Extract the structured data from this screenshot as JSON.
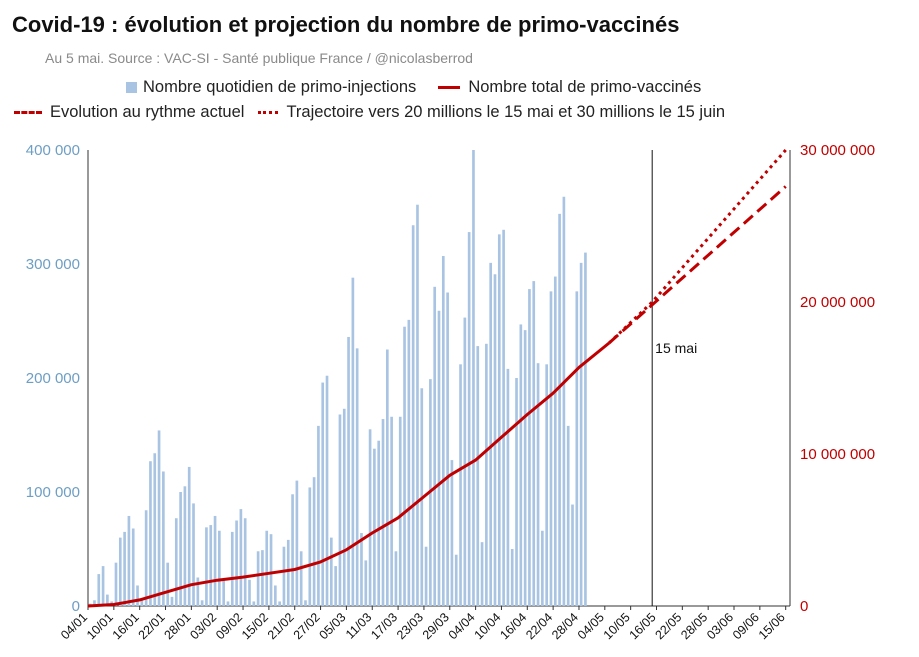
{
  "header": {
    "title": "Covid-19 : évolution et projection du nombre de primo-vaccinés",
    "subtitle": "Au 5 mai. Source : VAC-SI - Santé publique France / @nicolasberrod"
  },
  "legend": {
    "daily": "Nombre quotidien de primo-injections",
    "total": "Nombre total de primo-vaccinés",
    "current_pace": "Evolution au rythme actuel",
    "trajectory": "Trajectoire vers 20 millions le 15 mai et 30 millions le 15 juin"
  },
  "colors": {
    "bars": "#a9c4e2",
    "line": "#c00000",
    "left_axis": "#6d9ec4",
    "right_axis": "#c00000"
  },
  "chart_data": {
    "type": "bar+line",
    "title": "Covid-19 : évolution et projection du nombre de primo-vaccinés",
    "subtitle": "Au 5 mai. Source : VAC-SI - Santé publique France / @nicolasberrod",
    "x_start": "04/01",
    "total_days": 163,
    "x_tick_labels": [
      "04/01",
      "10/01",
      "16/01",
      "22/01",
      "28/01",
      "03/02",
      "09/02",
      "15/02",
      "21/02",
      "27/02",
      "05/03",
      "11/03",
      "17/03",
      "23/03",
      "29/03",
      "04/04",
      "10/04",
      "16/04",
      "22/04",
      "28/04",
      "04/05",
      "10/05",
      "16/05",
      "22/05",
      "28/05",
      "03/06",
      "09/06",
      "15/06"
    ],
    "left_axis": {
      "min": 0,
      "max": 400000,
      "ticks": [
        0,
        100000,
        200000,
        300000,
        400000
      ],
      "tick_labels": [
        "0",
        "100 000",
        "200 000",
        "300 000",
        "400 000"
      ]
    },
    "right_axis": {
      "min": 0,
      "max": 30000000,
      "ticks": [
        0,
        10000000,
        20000000,
        30000000
      ],
      "tick_labels": [
        "0",
        "10 000 000",
        "20 000 000",
        "30 000 000"
      ]
    },
    "series": [
      {
        "name": "Nombre quotidien de primo-injections",
        "kind": "bar",
        "axis": "left",
        "values": [
          2000,
          5000,
          28000,
          35000,
          10000,
          4000,
          38000,
          60000,
          65000,
          79000,
          68000,
          18000,
          5000,
          84000,
          127000,
          134000,
          154000,
          118000,
          38000,
          8000,
          77000,
          100000,
          105000,
          122000,
          90000,
          25000,
          5000,
          69000,
          71000,
          79000,
          66000,
          23000,
          4000,
          65000,
          75000,
          85000,
          77000,
          23000,
          4000,
          48000,
          49000,
          66000,
          63000,
          18000,
          4000,
          52000,
          58000,
          98000,
          110000,
          48000,
          5000,
          104000,
          113000,
          158000,
          196000,
          202000,
          60000,
          35000,
          168000,
          173000,
          236000,
          288000,
          226000,
          64000,
          40000,
          155000,
          138000,
          145000,
          164000,
          225000,
          166000,
          48000,
          166000,
          245000,
          251000,
          334000,
          352000,
          191000,
          52000,
          199000,
          280000,
          259000,
          307000,
          275000,
          128000,
          45000,
          212000,
          253000,
          328000,
          400000,
          228000,
          56000,
          230000,
          301000,
          291000,
          326000,
          330000,
          208000,
          50000,
          200000,
          247000,
          242000,
          278000,
          285000,
          213000,
          66000,
          212000,
          276000,
          289000,
          344000,
          359000,
          158000,
          89000,
          276000,
          301000,
          310000
        ]
      },
      {
        "name": "Nombre total de primo-vaccinés",
        "kind": "line",
        "axis": "right",
        "points": [
          [
            0,
            0
          ],
          [
            6,
            100000
          ],
          [
            12,
            400000
          ],
          [
            18,
            900000
          ],
          [
            24,
            1400000
          ],
          [
            30,
            1700000
          ],
          [
            36,
            1900000
          ],
          [
            42,
            2150000
          ],
          [
            48,
            2400000
          ],
          [
            54,
            2900000
          ],
          [
            60,
            3700000
          ],
          [
            66,
            4800000
          ],
          [
            72,
            5800000
          ],
          [
            78,
            7200000
          ],
          [
            84,
            8600000
          ],
          [
            90,
            9600000
          ],
          [
            96,
            11100000
          ],
          [
            102,
            12600000
          ],
          [
            108,
            14000000
          ],
          [
            114,
            15700000
          ],
          [
            121,
            17300000
          ]
        ]
      },
      {
        "name": "Evolution au rythme actuel",
        "kind": "line-dashed",
        "axis": "right",
        "points": [
          [
            121,
            17300000
          ],
          [
            162,
            27600000
          ]
        ]
      },
      {
        "name": "Trajectoire vers 20 millions le 15 mai et 30 millions le 15 juin",
        "kind": "line-dotted",
        "axis": "right",
        "points": [
          [
            121,
            17300000
          ],
          [
            131,
            20000000
          ],
          [
            162,
            30000000
          ]
        ]
      }
    ],
    "annotations": [
      {
        "text": "15 mai",
        "day": 131,
        "kind": "vertical-line"
      }
    ]
  }
}
